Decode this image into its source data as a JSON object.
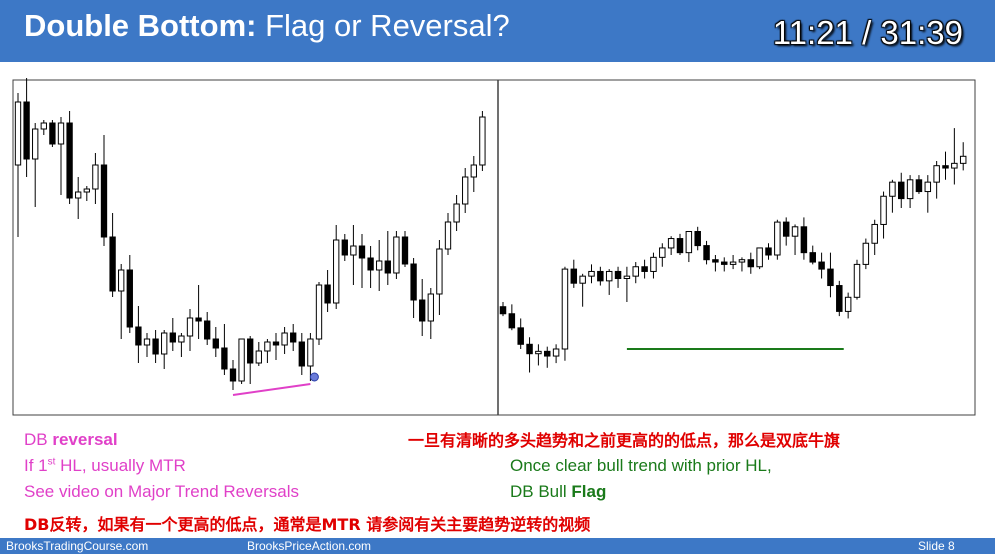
{
  "header": {
    "title_bold": "Double Bottom:",
    "title_rest": " Flag or Reversal?",
    "timer": "11:21 / 31:39"
  },
  "notes_left": {
    "line1_plain": "DB ",
    "line1_bold": "reversal",
    "line2_pre": "If 1",
    "line2_sup": "st",
    "line2_post": " HL, usually MTR",
    "line3": "See video on Major Trend Reversals"
  },
  "notes_right": {
    "cn_top": "一旦有清晰的多头趋势和之前更高的的低点，那么是双底牛旗",
    "line1": "Once clear bull trend with prior HL,",
    "line2_plain": "DB Bull ",
    "line2_bold": "Flag"
  },
  "notes_bottom_cn": "DB反转，如果有一个更高的低点，通常是MTR 请参阅有关主要趋势逆转的视频",
  "footer": {
    "left": "BrooksTradingCourse.com",
    "center": "BrooksPriceAction.com",
    "slide": "Slide 8"
  },
  "colors": {
    "header_bg": "#3d78c6",
    "magenta": "#e040c8",
    "green": "#1a7a1a",
    "red": "#e00000"
  },
  "chart_data": [
    {
      "type": "candlestick",
      "panel": "left",
      "annotation_line_color": "#e040c8",
      "candles": [
        [
          70,
          94,
          46,
          91
        ],
        [
          91,
          99,
          66,
          72
        ],
        [
          72,
          84,
          56,
          82
        ],
        [
          82,
          85,
          80,
          84
        ],
        [
          84,
          85,
          76,
          77
        ],
        [
          77,
          86,
          60,
          84
        ],
        [
          84,
          88,
          57,
          59
        ],
        [
          59,
          66,
          52,
          61
        ],
        [
          61,
          63,
          58,
          62
        ],
        [
          62,
          74,
          57,
          70
        ],
        [
          70,
          80,
          43,
          46
        ],
        [
          46,
          54,
          26,
          28
        ],
        [
          28,
          37,
          12,
          35
        ],
        [
          35,
          40,
          14,
          16
        ],
        [
          16,
          23,
          4,
          10
        ],
        [
          10,
          14,
          6,
          12
        ],
        [
          12,
          15,
          4,
          7
        ],
        [
          7,
          15,
          2,
          14
        ],
        [
          14,
          19,
          8,
          11
        ],
        [
          11,
          14,
          6,
          13
        ],
        [
          13,
          22,
          8,
          19
        ],
        [
          19,
          30,
          12,
          18
        ],
        [
          18,
          21,
          10,
          12
        ],
        [
          12,
          16,
          6,
          9
        ],
        [
          9,
          17,
          0,
          2
        ],
        [
          2,
          5,
          -5,
          -2
        ],
        [
          -2,
          12,
          -3,
          12
        ],
        [
          12,
          13,
          -3,
          4
        ],
        [
          4,
          11,
          3,
          8
        ],
        [
          8,
          12,
          4,
          11
        ],
        [
          11,
          14,
          5,
          10
        ],
        [
          10,
          16,
          7,
          14
        ],
        [
          14,
          17,
          8,
          11
        ],
        [
          11,
          14,
          0,
          3
        ],
        [
          3,
          14,
          -2,
          12
        ],
        [
          12,
          31,
          10,
          30
        ],
        [
          30,
          35,
          21,
          24
        ],
        [
          24,
          50,
          22,
          45
        ],
        [
          45,
          47,
          38,
          40
        ],
        [
          40,
          50,
          30,
          43
        ],
        [
          43,
          47,
          29,
          39
        ],
        [
          39,
          43,
          29,
          35
        ],
        [
          35,
          45,
          28,
          38
        ],
        [
          38,
          48,
          30,
          34
        ],
        [
          34,
          48,
          32,
          46
        ],
        [
          46,
          48,
          36,
          37
        ],
        [
          37,
          39,
          19,
          25
        ],
        [
          25,
          32,
          13,
          18
        ],
        [
          18,
          29,
          12,
          27
        ],
        [
          27,
          45,
          20,
          42
        ],
        [
          42,
          54,
          40,
          51
        ],
        [
          51,
          60,
          48,
          57
        ],
        [
          57,
          69,
          54,
          66
        ],
        [
          66,
          73,
          61,
          70
        ],
        [
          70,
          88,
          68,
          86
        ]
      ]
    },
    {
      "type": "candlestick",
      "panel": "right",
      "annotation_line_color": "#1a7a1a",
      "candles": [
        [
          18,
          20,
          14,
          15
        ],
        [
          15,
          19,
          8,
          9
        ],
        [
          9,
          13,
          0,
          2
        ],
        [
          2,
          5,
          -10,
          -2
        ],
        [
          -2,
          2,
          -7,
          -1
        ],
        [
          -1,
          1,
          -8,
          -3
        ],
        [
          -3,
          2,
          -6,
          0
        ],
        [
          0,
          35,
          -5,
          34
        ],
        [
          34,
          38,
          26,
          28
        ],
        [
          28,
          32,
          18,
          31
        ],
        [
          31,
          36,
          28,
          33
        ],
        [
          33,
          35,
          27,
          29
        ],
        [
          29,
          34,
          23,
          33
        ],
        [
          33,
          35,
          26,
          30
        ],
        [
          30,
          35,
          20,
          31
        ],
        [
          31,
          37,
          28,
          35
        ],
        [
          35,
          38,
          30,
          33
        ],
        [
          33,
          41,
          30,
          39
        ],
        [
          39,
          45,
          35,
          43
        ],
        [
          43,
          48,
          40,
          47
        ],
        [
          47,
          49,
          40,
          41
        ],
        [
          41,
          50,
          37,
          50
        ],
        [
          50,
          52,
          42,
          44
        ],
        [
          44,
          46,
          36,
          38
        ],
        [
          38,
          40,
          33,
          37
        ],
        [
          37,
          39,
          33,
          36
        ],
        [
          36,
          40,
          34,
          37
        ],
        [
          37,
          39,
          33,
          38
        ],
        [
          38,
          41,
          32,
          35
        ],
        [
          35,
          43,
          34,
          43
        ],
        [
          43,
          45,
          38,
          40
        ],
        [
          40,
          55,
          38,
          54
        ],
        [
          54,
          56,
          44,
          48
        ],
        [
          48,
          53,
          40,
          52
        ],
        [
          52,
          56,
          38,
          41
        ],
        [
          41,
          44,
          36,
          37
        ],
        [
          37,
          41,
          30,
          34
        ],
        [
          34,
          41,
          22,
          27
        ],
        [
          27,
          29,
          14,
          16
        ],
        [
          16,
          24,
          13,
          22
        ],
        [
          22,
          38,
          21,
          36
        ],
        [
          36,
          47,
          34,
          45
        ],
        [
          45,
          55,
          40,
          53
        ],
        [
          53,
          67,
          47,
          65
        ],
        [
          65,
          72,
          58,
          71
        ],
        [
          71,
          75,
          60,
          64
        ],
        [
          64,
          74,
          60,
          72
        ],
        [
          72,
          74,
          66,
          67
        ],
        [
          67,
          74,
          58,
          71
        ],
        [
          71,
          80,
          64,
          78
        ],
        [
          78,
          84,
          72,
          77
        ],
        [
          77,
          94,
          70,
          79
        ],
        [
          79,
          88,
          76,
          82
        ]
      ]
    }
  ]
}
